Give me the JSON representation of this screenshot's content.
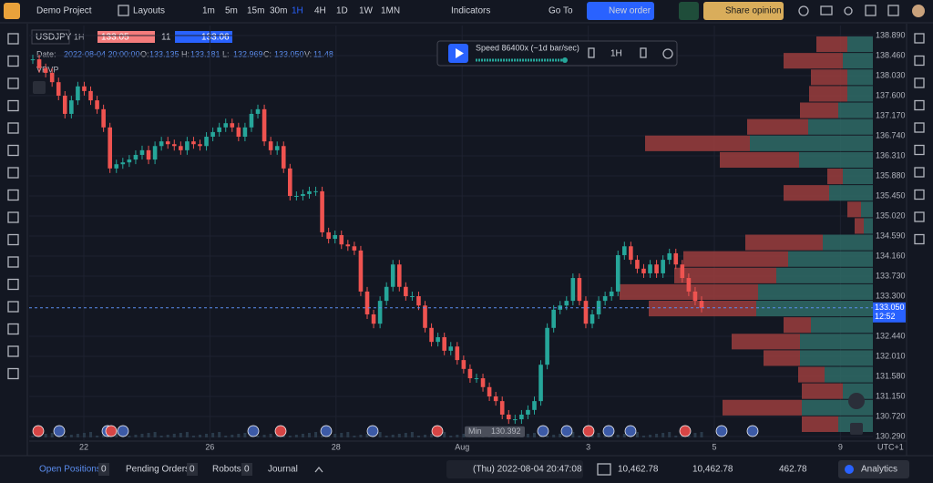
{
  "toolbar": {
    "project": "Demo Project",
    "layouts": "Layouts",
    "timeframes": [
      "1m",
      "5m",
      "15m",
      "30m",
      "1H",
      "4H",
      "1D",
      "1W",
      "1MN"
    ],
    "active_timeframe_index": 4,
    "indicators": "Indicators",
    "go_to": "Go To",
    "new_order": "New order",
    "share": "Share opinion"
  },
  "legend": {
    "symbol": "USDJPY",
    "interval": "1H",
    "bid": "133.05",
    "spread": "11",
    "ask": "133.06",
    "date_label": "Date:",
    "date": "2022-08-04 20:00:00",
    "o_label": "O:",
    "o": "133.135",
    "h_label": "H:",
    "h": "133.181",
    "l_label": "L:",
    "l": "132.969",
    "c_label": "C:",
    "c": "133.050",
    "v_label": "V:",
    "v": "11.48",
    "indicator": "VRVP"
  },
  "replay": {
    "speed": "Speed 86400x (~1d bar/sec)",
    "interval": "1H"
  },
  "chart_data": {
    "type": "candlestick",
    "up_color": "#26a69a",
    "down_color": "#ef5350",
    "values": [
      138.38,
      138.19,
      138.09,
      137.89,
      137.6,
      137.21,
      137.5,
      137.8,
      137.7,
      137.5,
      137.31,
      136.92,
      136.04,
      136.13,
      136.17,
      136.23,
      136.33,
      136.43,
      136.23,
      136.52,
      136.62,
      136.56,
      136.52,
      136.43,
      136.62,
      136.56,
      136.52,
      136.72,
      136.82,
      136.92,
      137.01,
      136.92,
      136.72,
      136.92,
      137.21,
      137.31,
      136.62,
      136.43,
      136.52,
      136.04,
      135.45,
      135.45,
      135.49,
      135.55,
      135.55,
      134.67,
      134.53,
      134.61,
      134.41,
      134.37,
      134.28,
      133.4,
      132.91,
      132.71,
      133.2,
      133.5,
      133.98,
      133.5,
      133.3,
      133.3,
      133.1,
      132.62,
      132.32,
      132.42,
      132.13,
      132.22,
      131.93,
      131.74,
      131.54,
      131.54,
      131.35,
      131.15,
      131.05,
      130.76,
      130.66,
      130.66,
      130.76,
      130.86,
      131.05,
      131.83,
      132.62,
      133.01,
      133.1,
      133.2,
      133.69,
      133.2,
      132.71,
      132.91,
      133.2,
      133.3,
      133.4,
      134.18,
      134.37,
      134.08,
      133.89,
      133.79,
      133.98,
      133.79,
      134.08,
      134.22,
      133.98,
      133.69,
      133.4,
      133.2,
      133.05
    ],
    "ylim": [
      130.212,
      139.105
    ],
    "yticks": [
      {
        "value": 138.89,
        "label": "138.890"
      },
      {
        "value": 138.46,
        "label": "138.460"
      },
      {
        "value": 138.03,
        "label": "138.030"
      },
      {
        "value": 137.6,
        "label": "137.600"
      },
      {
        "value": 137.17,
        "label": "137.170"
      },
      {
        "value": 136.74,
        "label": "136.740"
      },
      {
        "value": 136.31,
        "label": "136.310"
      },
      {
        "value": 135.88,
        "label": "135.880"
      },
      {
        "value": 135.45,
        "label": "135.450"
      },
      {
        "value": 135.02,
        "label": "135.020"
      },
      {
        "value": 134.59,
        "label": "134.590"
      },
      {
        "value": 134.16,
        "label": "134.160"
      },
      {
        "value": 133.73,
        "label": "133.730"
      },
      {
        "value": 133.3,
        "label": "133.300"
      },
      {
        "value": 132.44,
        "label": "132.440"
      },
      {
        "value": 132.01,
        "label": "132.010"
      },
      {
        "value": 131.58,
        "label": "131.580"
      },
      {
        "value": 131.15,
        "label": "131.150"
      },
      {
        "value": 130.72,
        "label": "130.720"
      },
      {
        "value": 130.29,
        "label": "130.290"
      }
    ],
    "xtick_labels": [
      "22",
      "26",
      "28",
      "Aug",
      "3",
      "5",
      "9"
    ],
    "timezone": "UTC+1",
    "current_price": {
      "value": 133.05,
      "label": "133.050"
    },
    "countdown": "12:52",
    "min_label": "Min",
    "min_value": 130.392,
    "volume_profile": {
      "sell_color": "#9b3d3d",
      "buy_color": "#2f6b66",
      "sell": [
        34,
        65,
        40,
        42,
        42,
        67,
        115,
        87,
        17,
        50,
        15,
        10,
        85,
        115,
        112,
        152,
        118,
        30,
        75,
        40,
        29,
        45,
        87,
        40
      ],
      "buy": [
        28,
        33,
        28,
        28,
        38,
        71,
        135,
        81,
        33,
        48,
        13,
        10,
        55,
        93,
        106,
        126,
        128,
        68,
        80,
        80,
        53,
        33,
        78,
        38
      ]
    }
  },
  "bottom": {
    "open_positions": "Open Positions",
    "open_count": "0",
    "pending": "Pending Orders",
    "pending_count": "0",
    "robots": "Robots",
    "robots_count": "0",
    "journal": "Journal",
    "datetime": "(Thu) 2022-08-04 20:47:08",
    "balance": "10,462.78",
    "equity": "10,462.78",
    "pnl": "462.78",
    "analytics": "Analytics"
  }
}
